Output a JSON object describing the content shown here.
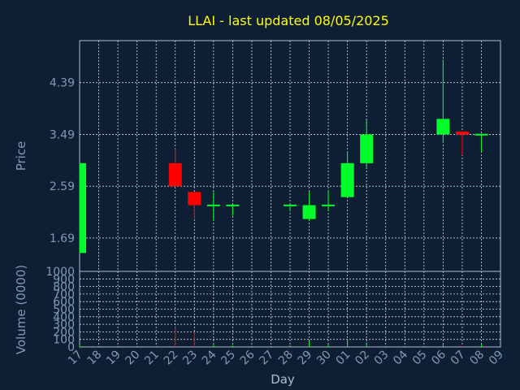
{
  "colors": {
    "background": "#0f1f33",
    "axis": "#b0bccb",
    "grid": "#d5dde6",
    "label": "#7f99b6",
    "title": "#ffff00",
    "up": "#00ff2b",
    "down": "#ff0000"
  },
  "chart_data": {
    "type": "candlestick",
    "title": "LLAI - last updated 08/05/2025",
    "xlabel": "Day",
    "ylabel": "Price",
    "volume_label": "Volume (0000)",
    "x_ticks": [
      "17",
      "18",
      "19",
      "20",
      "21",
      "22",
      "23",
      "24",
      "25",
      "26",
      "27",
      "28",
      "29",
      "30",
      "01",
      "02",
      "03",
      "04",
      "05",
      "06",
      "07",
      "08",
      "09"
    ],
    "price_ticks": [
      "1.69",
      "2.59",
      "3.49",
      "4.39"
    ],
    "price_tick_values": [
      1.69,
      2.59,
      3.49,
      4.39
    ],
    "price_range": [
      1.11,
      5.12
    ],
    "volume_ticks": [
      "0",
      "100",
      "200",
      "300",
      "400",
      "500",
      "600",
      "700",
      "800",
      "900",
      "1000"
    ],
    "volume_tick_values": [
      0,
      100,
      200,
      300,
      400,
      500,
      600,
      700,
      800,
      900,
      1000
    ],
    "volume_range": [
      0,
      1000
    ],
    "grid": true,
    "candles": [
      {
        "x": "17",
        "open": 1.43,
        "high": 2.99,
        "low": 1.43,
        "close": 2.99,
        "volume": 30
      },
      {
        "x": "22",
        "open": 2.99,
        "high": 3.24,
        "low": 2.59,
        "close": 2.59,
        "volume": 260
      },
      {
        "x": "23",
        "open": 2.49,
        "high": 2.49,
        "low": 2.02,
        "close": 2.26,
        "volume": 200
      },
      {
        "x": "24",
        "open": 2.26,
        "high": 2.49,
        "low": 1.99,
        "close": 2.27,
        "volume": 30
      },
      {
        "x": "25",
        "open": 2.26,
        "high": 2.27,
        "low": 2.08,
        "close": 2.27,
        "volume": 20
      },
      {
        "x": "28",
        "open": 2.26,
        "high": 2.27,
        "low": 2.16,
        "close": 2.27,
        "volume": 20
      },
      {
        "x": "29",
        "open": 2.02,
        "high": 2.49,
        "low": 1.99,
        "close": 2.26,
        "volume": 80
      },
      {
        "x": "30",
        "open": 2.26,
        "high": 2.52,
        "low": 2.16,
        "close": 2.27,
        "volume": 40
      },
      {
        "x": "01",
        "open": 2.4,
        "high": 3.2,
        "low": 2.4,
        "close": 2.99,
        "volume": 100
      },
      {
        "x": "02",
        "open": 2.99,
        "high": 3.74,
        "low": 2.89,
        "close": 3.49,
        "volume": 60
      },
      {
        "x": "06",
        "open": 3.49,
        "high": 4.79,
        "low": 3.34,
        "close": 3.76,
        "volume": 40
      },
      {
        "x": "07",
        "open": 3.54,
        "high": 3.54,
        "low": 3.13,
        "close": 3.49,
        "volume": 20
      },
      {
        "x": "08",
        "open": 3.49,
        "high": 3.5,
        "low": 3.19,
        "close": 3.5,
        "volume": 30
      }
    ]
  }
}
